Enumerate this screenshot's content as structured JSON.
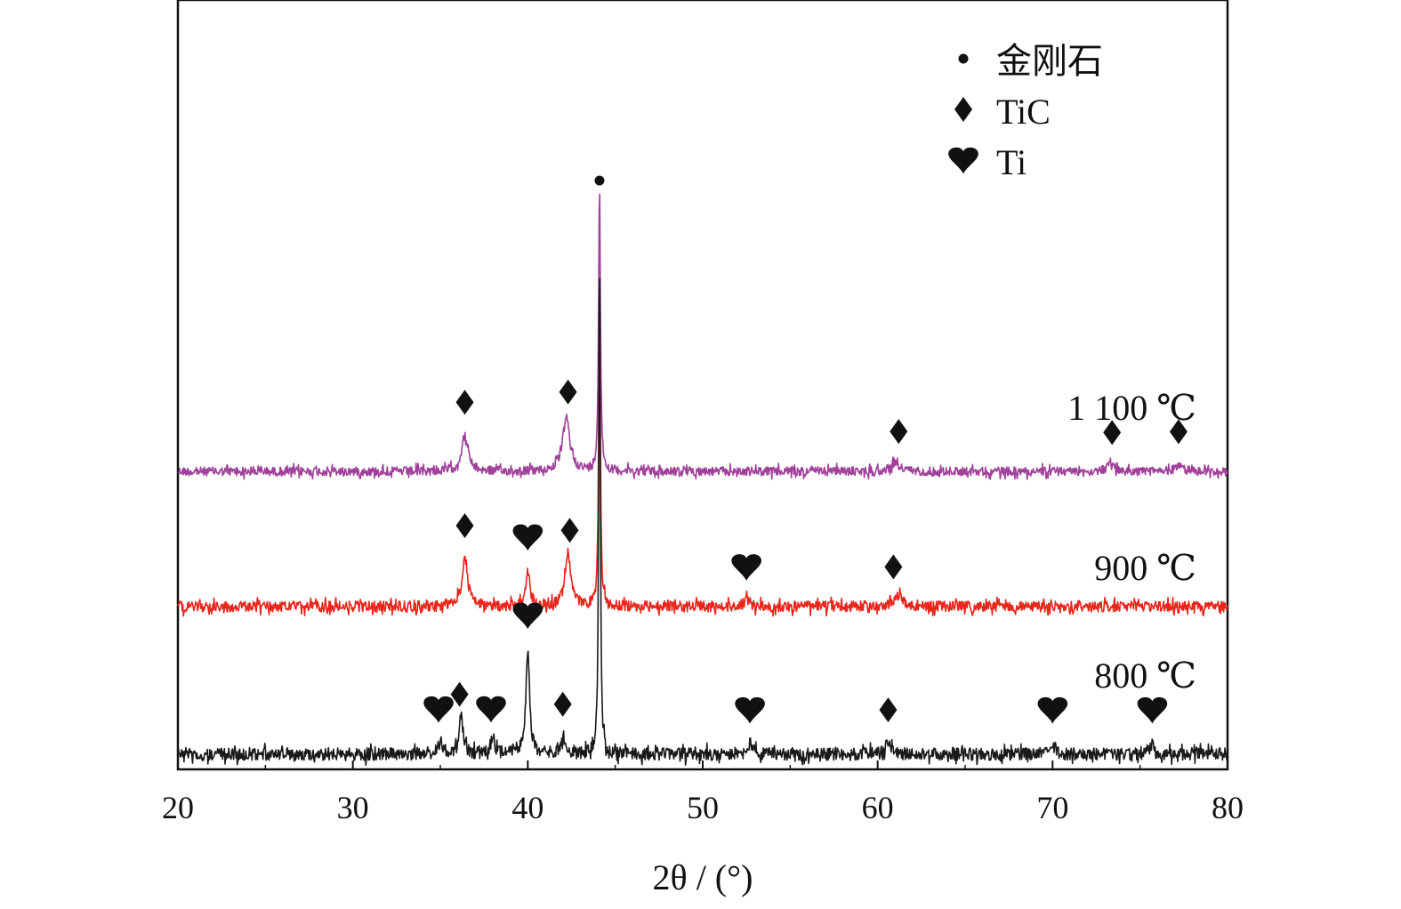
{
  "chart_data": {
    "type": "line",
    "xlabel": "2θ / (°)",
    "ylabel": "",
    "xlim": [
      20,
      80
    ],
    "xticks": [
      20,
      30,
      40,
      50,
      60,
      70,
      80
    ],
    "grid": false,
    "legend_position": "top-right",
    "legend": [
      {
        "marker": "dot",
        "label": "金刚石"
      },
      {
        "marker": "diamond",
        "label": "TiC"
      },
      {
        "marker": "heart",
        "label": "Ti"
      }
    ],
    "series": [
      {
        "name": "1 100 ℃",
        "color": "#a0409a",
        "peaks": [
          {
            "x": 36.4,
            "height": 0.12,
            "width": 0.45
          },
          {
            "x": 42.2,
            "height": 0.18,
            "width": 0.5
          },
          {
            "x": 44.1,
            "height": 1.0,
            "width": 0.12
          },
          {
            "x": 61.0,
            "height": 0.03,
            "width": 0.6
          },
          {
            "x": 73.3,
            "height": 0.02,
            "width": 0.5
          },
          {
            "x": 77.2,
            "height": 0.02,
            "width": 0.5
          }
        ],
        "markers": [
          {
            "type": "diamond",
            "x": 36.4
          },
          {
            "type": "diamond",
            "x": 42.3
          },
          {
            "type": "diamond",
            "x": 61.2
          },
          {
            "type": "diamond",
            "x": 73.4
          },
          {
            "type": "diamond",
            "x": 77.2
          }
        ]
      },
      {
        "name": "900 ℃",
        "color": "#e8261c",
        "peaks": [
          {
            "x": 36.4,
            "height": 0.16,
            "width": 0.4
          },
          {
            "x": 40.0,
            "height": 0.12,
            "width": 0.3
          },
          {
            "x": 42.3,
            "height": 0.18,
            "width": 0.4
          },
          {
            "x": 44.1,
            "height": 1.0,
            "width": 0.12
          },
          {
            "x": 52.5,
            "height": 0.02,
            "width": 0.4
          },
          {
            "x": 61.2,
            "height": 0.04,
            "width": 0.6
          }
        ],
        "markers": [
          {
            "type": "diamond",
            "x": 36.4
          },
          {
            "type": "heart",
            "x": 40.0
          },
          {
            "type": "diamond",
            "x": 42.4
          },
          {
            "type": "heart",
            "x": 52.5
          },
          {
            "type": "diamond",
            "x": 60.9
          }
        ]
      },
      {
        "name": "800 ℃",
        "color": "#1a1a1a",
        "peaks": [
          {
            "x": 35.0,
            "height": 0.03,
            "width": 0.3
          },
          {
            "x": 36.2,
            "height": 0.08,
            "width": 0.25
          },
          {
            "x": 38.0,
            "height": 0.03,
            "width": 0.3
          },
          {
            "x": 40.0,
            "height": 0.2,
            "width": 0.25
          },
          {
            "x": 42.0,
            "height": 0.03,
            "width": 0.3
          },
          {
            "x": 44.1,
            "height": 1.0,
            "width": 0.1
          },
          {
            "x": 52.7,
            "height": 0.02,
            "width": 0.3
          },
          {
            "x": 60.6,
            "height": 0.02,
            "width": 0.4
          },
          {
            "x": 70.0,
            "height": 0.02,
            "width": 0.3
          },
          {
            "x": 75.7,
            "height": 0.02,
            "width": 0.3
          }
        ],
        "markers": [
          {
            "type": "heart",
            "x": 34.9
          },
          {
            "type": "diamond",
            "x": 36.1
          },
          {
            "type": "heart",
            "x": 37.9
          },
          {
            "type": "heart",
            "x": 40.0
          },
          {
            "type": "diamond",
            "x": 42.0
          },
          {
            "type": "heart",
            "x": 52.7
          },
          {
            "type": "diamond",
            "x": 60.6
          },
          {
            "type": "heart",
            "x": 70.0
          },
          {
            "type": "heart",
            "x": 75.7
          }
        ]
      }
    ],
    "top_markers": [
      {
        "type": "dot",
        "x": 44.1
      }
    ]
  }
}
